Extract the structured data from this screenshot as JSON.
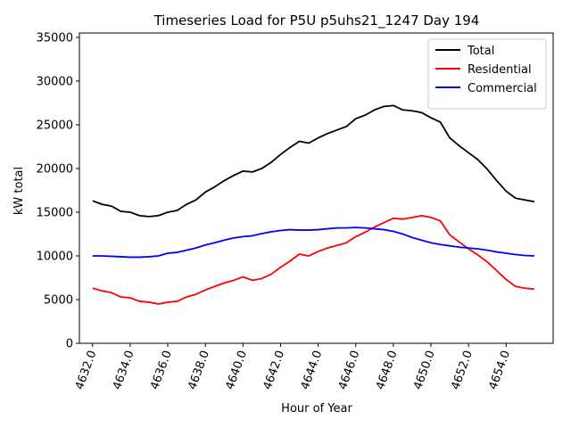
{
  "chart_data": {
    "type": "line",
    "title": "Timeseries Load for P5U p5uhs21_1247  Day 194",
    "xlabel": "Hour of Year",
    "ylabel": "kW total",
    "xlim": [
      4631.3,
      4656.5
    ],
    "ylim": [
      0,
      35500
    ],
    "x_ticks": [
      4632,
      4634,
      4636,
      4638,
      4640,
      4642,
      4644,
      4646,
      4648,
      4650,
      4652,
      4654
    ],
    "x_tick_labels": [
      "4632.0",
      "4634.0",
      "4636.0",
      "4638.0",
      "4640.0",
      "4642.0",
      "4644.0",
      "4646.0",
      "4648.0",
      "4650.0",
      "4652.0",
      "4654.0"
    ],
    "y_ticks": [
      0,
      5000,
      10000,
      15000,
      20000,
      25000,
      30000,
      35000
    ],
    "y_tick_labels": [
      "0",
      "5000",
      "10000",
      "15000",
      "20000",
      "25000",
      "30000",
      "35000"
    ],
    "legend_position": "top-right",
    "x": [
      4632.0,
      4632.5,
      4633.0,
      4633.5,
      4634.0,
      4634.5,
      4635.0,
      4635.5,
      4636.0,
      4636.5,
      4637.0,
      4637.5,
      4638.0,
      4638.5,
      4639.0,
      4639.5,
      4640.0,
      4640.5,
      4641.0,
      4641.5,
      4642.0,
      4642.5,
      4643.0,
      4643.5,
      4644.0,
      4644.5,
      4645.0,
      4645.5,
      4646.0,
      4646.5,
      4647.0,
      4647.5,
      4648.0,
      4648.5,
      4649.0,
      4649.5,
      4650.0,
      4650.5,
      4651.0,
      4651.5,
      4652.0,
      4652.5,
      4653.0,
      4653.5,
      4654.0,
      4654.5,
      4655.0,
      4655.5
    ],
    "series": [
      {
        "name": "Total",
        "color": "#000000",
        "values": [
          16300,
          15900,
          15700,
          15100,
          15000,
          14600,
          14500,
          14600,
          15000,
          15200,
          15900,
          16400,
          17300,
          17900,
          18600,
          19200,
          19700,
          19600,
          20000,
          20700,
          21600,
          22400,
          23100,
          22900,
          23500,
          24000,
          24400,
          24800,
          25700,
          26100,
          26700,
          27100,
          27200,
          26700,
          26600,
          26400,
          25800,
          25300,
          23500,
          22600,
          21800,
          21000,
          19900,
          18600,
          17400,
          16600,
          16400,
          16200
        ]
      },
      {
        "name": "Residential",
        "color": "#ff0000",
        "values": [
          6300,
          6000,
          5800,
          5300,
          5200,
          4800,
          4700,
          4500,
          4700,
          4800,
          5300,
          5600,
          6100,
          6500,
          6900,
          7200,
          7600,
          7200,
          7400,
          7900,
          8700,
          9400,
          10200,
          10000,
          10500,
          10900,
          11200,
          11500,
          12200,
          12700,
          13300,
          13800,
          14300,
          14200,
          14400,
          14600,
          14400,
          14000,
          12400,
          11600,
          10800,
          10100,
          9300,
          8300,
          7300,
          6500,
          6300,
          6200
        ]
      },
      {
        "name": "Commercial",
        "color": "#0000ff",
        "values": [
          10000,
          10000,
          9950,
          9900,
          9850,
          9850,
          9900,
          10000,
          10300,
          10400,
          10650,
          10900,
          11250,
          11500,
          11800,
          12050,
          12200,
          12300,
          12550,
          12750,
          12900,
          13000,
          12950,
          12950,
          13000,
          13100,
          13200,
          13200,
          13250,
          13200,
          13100,
          13000,
          12800,
          12500,
          12100,
          11800,
          11500,
          11300,
          11150,
          11000,
          10900,
          10800,
          10650,
          10450,
          10300,
          10150,
          10050,
          10000
        ]
      }
    ]
  }
}
